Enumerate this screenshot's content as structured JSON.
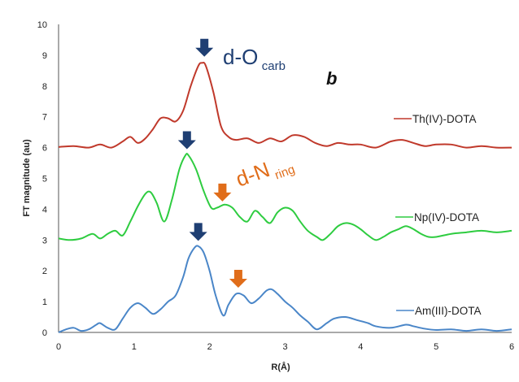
{
  "chart_data": {
    "type": "line",
    "xlabel": "R(Å)",
    "ylabel": "FT magnitude (au)",
    "xlim": [
      0,
      6
    ],
    "ylim": [
      0,
      10
    ],
    "x_ticks": [
      "0",
      "1",
      "2",
      "3",
      "4",
      "5",
      "6"
    ],
    "y_ticks": [
      "0",
      "1",
      "2",
      "3",
      "4",
      "5",
      "6",
      "7",
      "8",
      "9",
      "10"
    ],
    "grid": false,
    "panel_label": "b",
    "series": [
      {
        "name": "Th(IV)-DOTA",
        "color": "#c0392b",
        "points": [
          [
            0,
            6.02
          ],
          [
            0.2,
            6.05
          ],
          [
            0.4,
            6.0
          ],
          [
            0.55,
            6.1
          ],
          [
            0.7,
            6.0
          ],
          [
            0.85,
            6.2
          ],
          [
            0.95,
            6.35
          ],
          [
            1.05,
            6.15
          ],
          [
            1.15,
            6.3
          ],
          [
            1.25,
            6.6
          ],
          [
            1.35,
            6.95
          ],
          [
            1.45,
            6.95
          ],
          [
            1.55,
            6.85
          ],
          [
            1.65,
            7.2
          ],
          [
            1.75,
            8.0
          ],
          [
            1.85,
            8.65
          ],
          [
            1.9,
            8.75
          ],
          [
            1.95,
            8.65
          ],
          [
            2.05,
            7.8
          ],
          [
            2.15,
            6.7
          ],
          [
            2.25,
            6.35
          ],
          [
            2.35,
            6.25
          ],
          [
            2.5,
            6.3
          ],
          [
            2.65,
            6.15
          ],
          [
            2.8,
            6.3
          ],
          [
            2.95,
            6.2
          ],
          [
            3.1,
            6.4
          ],
          [
            3.25,
            6.35
          ],
          [
            3.4,
            6.15
          ],
          [
            3.55,
            6.05
          ],
          [
            3.7,
            6.15
          ],
          [
            3.85,
            6.1
          ],
          [
            4.0,
            6.1
          ],
          [
            4.2,
            6.0
          ],
          [
            4.4,
            6.2
          ],
          [
            4.55,
            6.25
          ],
          [
            4.7,
            6.15
          ],
          [
            4.85,
            6.05
          ],
          [
            5.0,
            6.1
          ],
          [
            5.2,
            6.1
          ],
          [
            5.4,
            6.0
          ],
          [
            5.6,
            6.05
          ],
          [
            5.8,
            6.0
          ],
          [
            6.0,
            6.0
          ]
        ]
      },
      {
        "name": "Np(IV)-DOTA",
        "color": "#2ecc40",
        "points": [
          [
            0,
            3.05
          ],
          [
            0.15,
            3.0
          ],
          [
            0.3,
            3.05
          ],
          [
            0.45,
            3.2
          ],
          [
            0.55,
            3.05
          ],
          [
            0.65,
            3.2
          ],
          [
            0.75,
            3.3
          ],
          [
            0.85,
            3.15
          ],
          [
            0.95,
            3.6
          ],
          [
            1.05,
            4.1
          ],
          [
            1.15,
            4.5
          ],
          [
            1.22,
            4.55
          ],
          [
            1.3,
            4.2
          ],
          [
            1.4,
            3.6
          ],
          [
            1.5,
            4.3
          ],
          [
            1.6,
            5.3
          ],
          [
            1.68,
            5.75
          ],
          [
            1.72,
            5.75
          ],
          [
            1.82,
            5.3
          ],
          [
            1.92,
            4.6
          ],
          [
            2.02,
            4.05
          ],
          [
            2.1,
            4.05
          ],
          [
            2.2,
            4.15
          ],
          [
            2.3,
            4.05
          ],
          [
            2.4,
            3.75
          ],
          [
            2.5,
            3.6
          ],
          [
            2.6,
            3.95
          ],
          [
            2.7,
            3.75
          ],
          [
            2.8,
            3.55
          ],
          [
            2.9,
            3.9
          ],
          [
            3.0,
            4.05
          ],
          [
            3.1,
            3.95
          ],
          [
            3.2,
            3.6
          ],
          [
            3.3,
            3.3
          ],
          [
            3.42,
            3.1
          ],
          [
            3.5,
            3.0
          ],
          [
            3.6,
            3.2
          ],
          [
            3.7,
            3.45
          ],
          [
            3.8,
            3.55
          ],
          [
            3.9,
            3.5
          ],
          [
            4.0,
            3.35
          ],
          [
            4.1,
            3.15
          ],
          [
            4.2,
            3.0
          ],
          [
            4.3,
            3.1
          ],
          [
            4.4,
            3.25
          ],
          [
            4.5,
            3.35
          ],
          [
            4.6,
            3.45
          ],
          [
            4.7,
            3.35
          ],
          [
            4.8,
            3.2
          ],
          [
            4.9,
            3.1
          ],
          [
            5.0,
            3.1
          ],
          [
            5.2,
            3.2
          ],
          [
            5.4,
            3.25
          ],
          [
            5.6,
            3.3
          ],
          [
            5.8,
            3.25
          ],
          [
            6.0,
            3.3
          ]
        ]
      },
      {
        "name": "Am(III)-DOTA",
        "color": "#4a86c8",
        "points": [
          [
            0,
            0.0
          ],
          [
            0.1,
            0.1
          ],
          [
            0.2,
            0.15
          ],
          [
            0.3,
            0.05
          ],
          [
            0.4,
            0.1
          ],
          [
            0.5,
            0.25
          ],
          [
            0.55,
            0.3
          ],
          [
            0.65,
            0.15
          ],
          [
            0.75,
            0.1
          ],
          [
            0.85,
            0.45
          ],
          [
            0.95,
            0.8
          ],
          [
            1.05,
            0.95
          ],
          [
            1.15,
            0.8
          ],
          [
            1.25,
            0.6
          ],
          [
            1.35,
            0.75
          ],
          [
            1.45,
            1.0
          ],
          [
            1.55,
            1.2
          ],
          [
            1.65,
            1.8
          ],
          [
            1.72,
            2.4
          ],
          [
            1.8,
            2.75
          ],
          [
            1.85,
            2.8
          ],
          [
            1.92,
            2.6
          ],
          [
            2.0,
            2.0
          ],
          [
            2.08,
            1.2
          ],
          [
            2.18,
            0.55
          ],
          [
            2.25,
            0.9
          ],
          [
            2.35,
            1.25
          ],
          [
            2.45,
            1.2
          ],
          [
            2.55,
            0.95
          ],
          [
            2.65,
            1.1
          ],
          [
            2.75,
            1.35
          ],
          [
            2.82,
            1.4
          ],
          [
            2.9,
            1.25
          ],
          [
            3.0,
            1.0
          ],
          [
            3.1,
            0.8
          ],
          [
            3.2,
            0.55
          ],
          [
            3.3,
            0.35
          ],
          [
            3.42,
            0.1
          ],
          [
            3.55,
            0.3
          ],
          [
            3.65,
            0.45
          ],
          [
            3.8,
            0.5
          ],
          [
            3.95,
            0.4
          ],
          [
            4.1,
            0.3
          ],
          [
            4.2,
            0.2
          ],
          [
            4.4,
            0.15
          ],
          [
            4.6,
            0.25
          ],
          [
            4.7,
            0.2
          ],
          [
            4.85,
            0.12
          ],
          [
            5.0,
            0.08
          ],
          [
            5.2,
            0.1
          ],
          [
            5.4,
            0.05
          ],
          [
            5.6,
            0.1
          ],
          [
            5.8,
            0.05
          ],
          [
            6.0,
            0.1
          ]
        ]
      }
    ],
    "annotations": [
      {
        "main": "d-O",
        "sub": "carb",
        "color": "#1f3f73"
      },
      {
        "main": "d-N",
        "sub": "ring",
        "color": "#e06d1a"
      }
    ],
    "arrows": [
      {
        "x": 1.93,
        "y": 8.95,
        "color": "#1f3f73"
      },
      {
        "x": 1.7,
        "y": 5.95,
        "color": "#1f3f73"
      },
      {
        "x": 1.85,
        "y": 2.97,
        "color": "#1f3f73"
      },
      {
        "x": 2.17,
        "y": 4.25,
        "color": "#e06d1a"
      },
      {
        "x": 2.38,
        "y": 1.45,
        "color": "#e06d1a"
      }
    ]
  }
}
